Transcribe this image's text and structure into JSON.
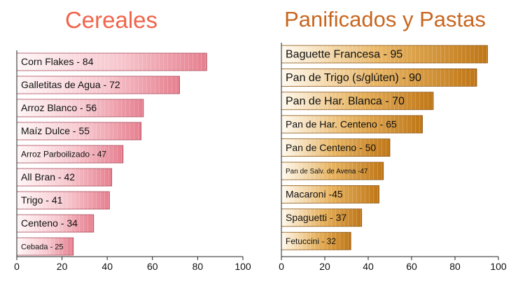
{
  "colors": {
    "left_title": "#f0644a",
    "right_title": "#c8661e",
    "left_bar_light": "#fff1f3",
    "left_bar_dark": "#e98694",
    "right_bar_light": "#fff6e8",
    "right_bar_dark": "#c47d1c",
    "axis": "#222222",
    "text": "#111111"
  },
  "chart_data": [
    {
      "type": "bar",
      "orientation": "horizontal",
      "title": "Cereales",
      "xlim": [
        0,
        100
      ],
      "xticks": [
        "0",
        "20",
        "40",
        "60",
        "80",
        "100"
      ],
      "grid": false,
      "labels": [
        "Corn Flakes - 84",
        "Galletitas de Agua - 72",
        "Arroz Blanco - 56",
        "Maíz Dulce - 55",
        "Arroz Parboilizado - 47",
        "All Bran - 42",
        "Trigo - 41",
        "Centeno - 34",
        "Cebada - 25"
      ],
      "values": [
        84,
        72,
        56,
        55,
        47,
        42,
        41,
        34,
        25
      ]
    },
    {
      "type": "bar",
      "orientation": "horizontal",
      "title": "Panificados y Pastas",
      "xlim": [
        0,
        100
      ],
      "xticks": [
        "0",
        "20",
        "40",
        "60",
        "80",
        "100"
      ],
      "grid": false,
      "labels": [
        "Baguette Francesa - 95",
        "Pan de Trigo (s/glúten) - 90",
        "Pan de Har. Blanca - 70",
        "Pan de Har. Centeno - 65",
        "Pan de Centeno - 50",
        "Pan de Salv. de Avena -47",
        "Macaroni -45",
        "Spaguetti - 37",
        "Fetuccini - 32"
      ],
      "values": [
        95,
        90,
        70,
        65,
        50,
        47,
        45,
        37,
        32
      ]
    }
  ]
}
